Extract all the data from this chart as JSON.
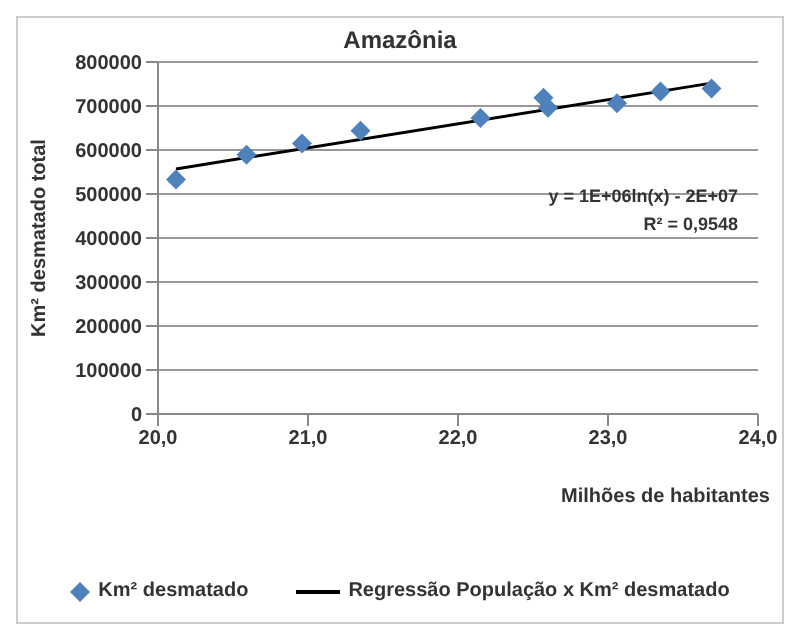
{
  "chart_data": {
    "type": "scatter",
    "title": "Amazônia",
    "xlabel": "Milhões de habitantes",
    "ylabel": "Km² desmatado total",
    "series": [
      {
        "name": "Km² desmatado",
        "color": "#4f81bd",
        "marker": "diamond",
        "x": [
          20.12,
          20.59,
          20.96,
          21.35,
          22.15,
          22.57,
          22.6,
          23.06,
          23.35,
          23.69
        ],
        "values": [
          533000,
          589000,
          615000,
          644000,
          673000,
          719000,
          696000,
          706000,
          733000,
          740000
        ]
      },
      {
        "name": "Regressão População x Km² desmatado",
        "type": "line",
        "color": "#000000",
        "marker": "none",
        "x": [
          20.12,
          23.69
        ],
        "values": [
          557000,
          752000
        ]
      }
    ],
    "xlim": [
      20,
      24
    ],
    "xticks": [
      {
        "value": 20,
        "label": "20,0"
      },
      {
        "value": 21,
        "label": "21,0"
      },
      {
        "value": 22,
        "label": "22,0"
      },
      {
        "value": 23,
        "label": "23,0"
      },
      {
        "value": 24,
        "label": "24,0"
      }
    ],
    "ylim": [
      0,
      800000
    ],
    "yticks": [
      0,
      100000,
      200000,
      300000,
      400000,
      500000,
      600000,
      700000,
      800000
    ],
    "grid": "y",
    "legend": "bottom",
    "annotations": [
      "y = 1E+06ln(x) - 2E+07",
      "R² = 0,9548"
    ]
  }
}
